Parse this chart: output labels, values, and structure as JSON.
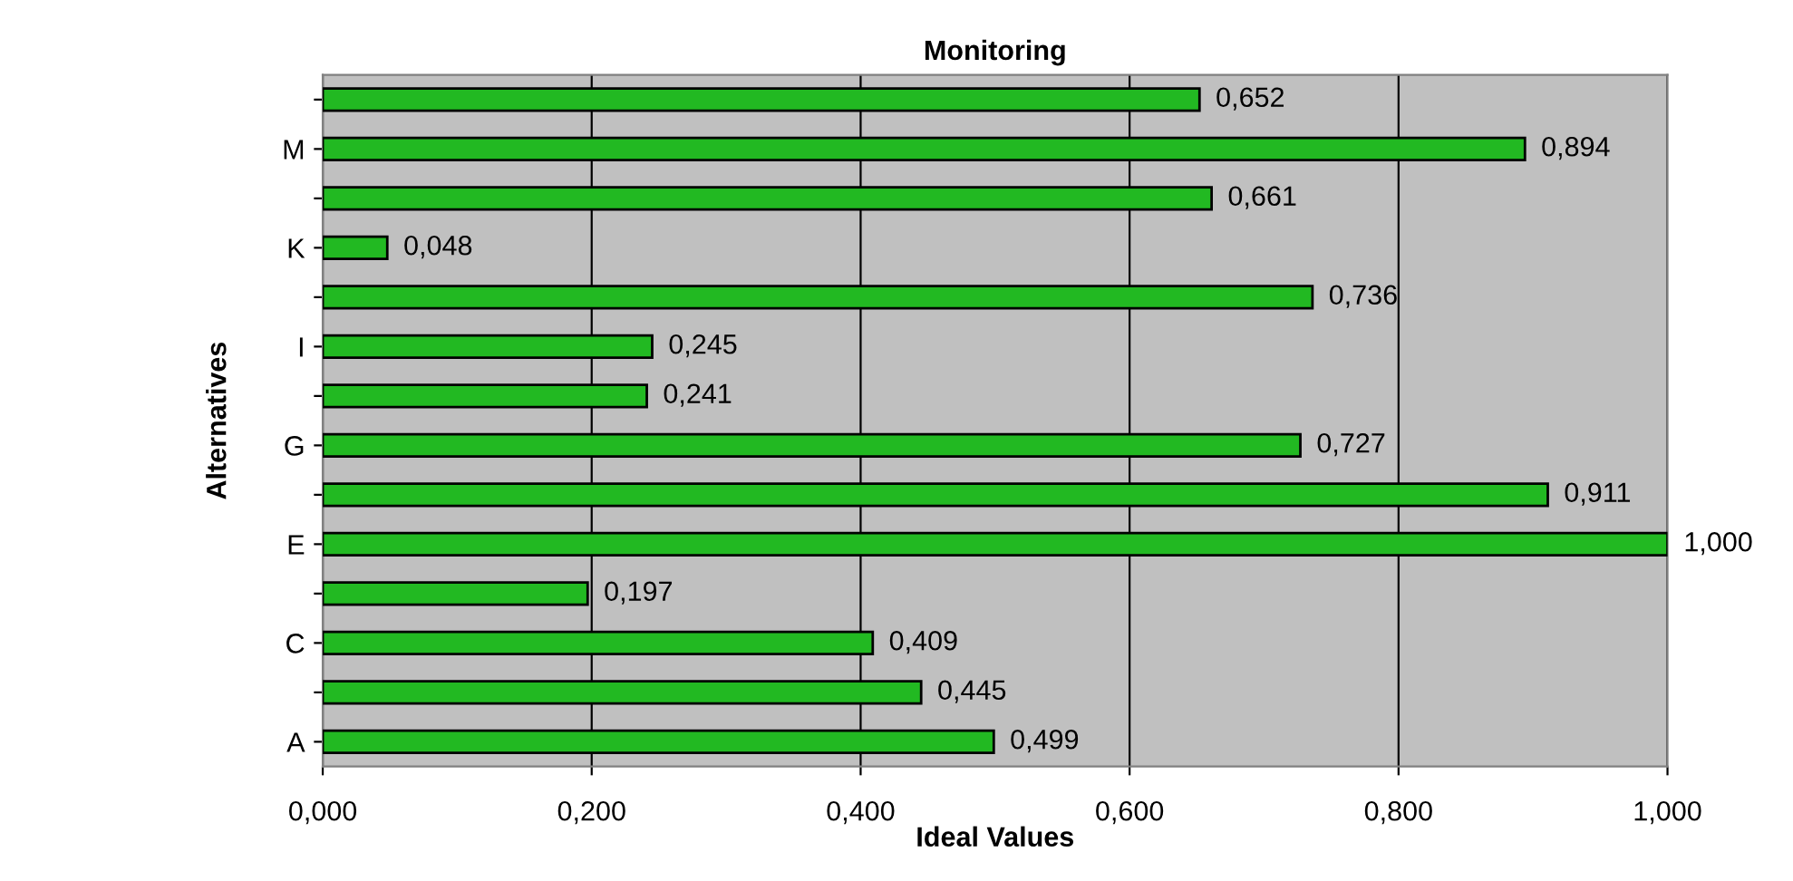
{
  "chart_data": {
    "type": "bar",
    "orientation": "horizontal",
    "title": "Monitoring",
    "xlabel": "Ideal Values",
    "ylabel": "Alternatives",
    "categories": [
      null,
      "M",
      null,
      "K",
      null,
      "I",
      null,
      "G",
      null,
      "E",
      null,
      "C",
      null,
      "A"
    ],
    "values": [
      0.652,
      0.894,
      0.661,
      0.048,
      0.736,
      0.245,
      0.241,
      0.727,
      0.911,
      1.0,
      0.197,
      0.409,
      0.445,
      0.499
    ],
    "value_labels": [
      "0,652",
      "0,894",
      "0,661",
      "0,048",
      "0,736",
      "0,245",
      "0,241",
      "0,727",
      "0,911",
      "1,000",
      "0,197",
      "0,409",
      "0,445",
      "0,499"
    ],
    "color": "#22b922",
    "xlim": [
      0,
      1
    ],
    "xticks": [
      {
        "value": 0,
        "label": "0,000"
      },
      {
        "value": 0.2,
        "label": "0,200"
      },
      {
        "value": 0.4,
        "label": "0,400"
      },
      {
        "value": 0.6,
        "label": "0,600"
      },
      {
        "value": 0.8,
        "label": "0,800"
      },
      {
        "value": 1,
        "label": "1,000"
      }
    ],
    "grid": "x",
    "legend": false
  }
}
